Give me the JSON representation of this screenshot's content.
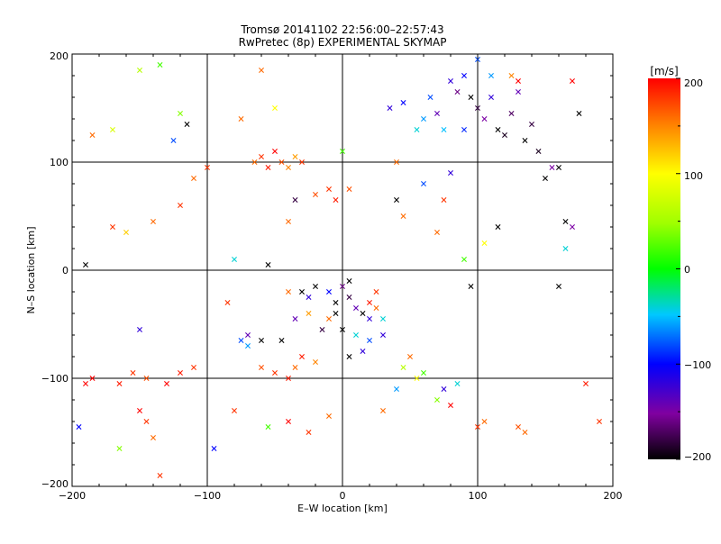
{
  "chart_data": {
    "type": "scatter",
    "title": "Tromsø 20141102 22:56:00–22:57:43",
    "subtitle": "RwPretec (8p) EXPERIMENTAL SKYMAP",
    "xlabel": "E–W location [km]",
    "ylabel": "N–S location [km]",
    "xlim": [
      -200,
      200
    ],
    "ylim": [
      -200,
      200
    ],
    "x_ticks": [
      "−200",
      "−100",
      "0",
      "100",
      "200"
    ],
    "y_ticks": [
      "−200",
      "−100",
      "0",
      "100",
      "200"
    ],
    "grid": true,
    "colorbar": {
      "label": "[m/s]",
      "range": [
        -200,
        200
      ],
      "ticks": [
        "200",
        "100",
        "0",
        "−100",
        "−200"
      ],
      "colormap": "rainbow (black→purple→blue→cyan→green→yellow→red)"
    },
    "marker_legend": {
      "dot": "small dot",
      "cross": "×"
    },
    "points": [
      [
        -120,
        145,
        40,
        "x"
      ],
      [
        -125,
        120,
        -80,
        "x"
      ],
      [
        -120,
        60,
        180,
        "x"
      ],
      [
        -115,
        135,
        -200,
        "x"
      ],
      [
        -135,
        190,
        20,
        "x"
      ],
      [
        -150,
        185,
        60,
        "x"
      ],
      [
        -170,
        130,
        80,
        "x"
      ],
      [
        -185,
        125,
        160,
        "x"
      ],
      [
        -190,
        5,
        -200,
        "x"
      ],
      [
        -170,
        40,
        180,
        "x"
      ],
      [
        -160,
        35,
        120,
        "x"
      ],
      [
        -140,
        45,
        160,
        "x"
      ],
      [
        -100,
        95,
        180,
        "x"
      ],
      [
        -110,
        85,
        160,
        "x"
      ],
      [
        -65,
        100,
        160,
        "x"
      ],
      [
        -60,
        105,
        180,
        "x"
      ],
      [
        -55,
        95,
        190,
        "x"
      ],
      [
        -50,
        110,
        200,
        "x"
      ],
      [
        -45,
        100,
        170,
        "x"
      ],
      [
        -40,
        95,
        150,
        "x"
      ],
      [
        -35,
        105,
        140,
        "x"
      ],
      [
        -30,
        100,
        180,
        "x"
      ],
      [
        -75,
        140,
        160,
        "x"
      ],
      [
        -60,
        185,
        160,
        "x"
      ],
      [
        -50,
        150,
        100,
        "x"
      ],
      [
        -40,
        45,
        160,
        "x"
      ],
      [
        -35,
        65,
        -180,
        "x"
      ],
      [
        -20,
        70,
        170,
        "x"
      ],
      [
        -10,
        75,
        180,
        "x"
      ],
      [
        -5,
        65,
        190,
        "x"
      ],
      [
        5,
        75,
        170,
        "x"
      ],
      [
        0,
        110,
        20,
        "x"
      ],
      [
        35,
        150,
        -120,
        "x"
      ],
      [
        45,
        155,
        -100,
        "x"
      ],
      [
        55,
        130,
        -40,
        "x"
      ],
      [
        60,
        140,
        -60,
        "x"
      ],
      [
        65,
        160,
        -80,
        "x"
      ],
      [
        70,
        145,
        -140,
        "x"
      ],
      [
        75,
        130,
        -50,
        "x"
      ],
      [
        80,
        175,
        -120,
        "x"
      ],
      [
        85,
        165,
        -160,
        "x"
      ],
      [
        90,
        180,
        -100,
        "x"
      ],
      [
        95,
        160,
        -200,
        "x"
      ],
      [
        100,
        150,
        -180,
        "x"
      ],
      [
        105,
        140,
        -150,
        "x"
      ],
      [
        110,
        160,
        -120,
        "x"
      ],
      [
        115,
        130,
        -200,
        "x"
      ],
      [
        120,
        125,
        -190,
        "x"
      ],
      [
        125,
        145,
        -170,
        "x"
      ],
      [
        130,
        165,
        -140,
        "x"
      ],
      [
        135,
        120,
        -200,
        "x"
      ],
      [
        140,
        135,
        -180,
        "x"
      ],
      [
        100,
        195,
        -80,
        "x"
      ],
      [
        110,
        180,
        -60,
        "x"
      ],
      [
        125,
        180,
        150,
        "x"
      ],
      [
        130,
        175,
        200,
        "x"
      ],
      [
        145,
        110,
        -190,
        "x"
      ],
      [
        150,
        85,
        -200,
        "x"
      ],
      [
        155,
        95,
        -150,
        "x"
      ],
      [
        170,
        175,
        200,
        "x"
      ],
      [
        175,
        145,
        -200,
        "x"
      ],
      [
        160,
        95,
        -200,
        "x"
      ],
      [
        115,
        40,
        -200,
        "x"
      ],
      [
        105,
        25,
        100,
        "x"
      ],
      [
        80,
        90,
        -120,
        "x"
      ],
      [
        75,
        65,
        180,
        "x"
      ],
      [
        70,
        35,
        160,
        "x"
      ],
      [
        40,
        100,
        160,
        "x"
      ],
      [
        40,
        65,
        -200,
        "x"
      ],
      [
        45,
        50,
        160,
        "x"
      ],
      [
        60,
        80,
        -80,
        "x"
      ],
      [
        90,
        130,
        -90,
        "x"
      ],
      [
        165,
        45,
        -200,
        "x"
      ],
      [
        170,
        40,
        -150,
        "x"
      ],
      [
        165,
        20,
        -40,
        "x"
      ],
      [
        160,
        -15,
        -200,
        "x"
      ],
      [
        95,
        -15,
        -200,
        "x"
      ],
      [
        90,
        10,
        20,
        "x"
      ],
      [
        -55,
        5,
        -200,
        "x"
      ],
      [
        -80,
        10,
        -40,
        "x"
      ],
      [
        -30,
        -20,
        -200,
        "x"
      ],
      [
        -25,
        -25,
        -120,
        "x"
      ],
      [
        -20,
        -15,
        -200,
        "x"
      ],
      [
        -10,
        -20,
        -100,
        "x"
      ],
      [
        -5,
        -30,
        -200,
        "x"
      ],
      [
        5,
        -25,
        -180,
        "x"
      ],
      [
        10,
        -35,
        -140,
        "x"
      ],
      [
        15,
        -40,
        -200,
        "x"
      ],
      [
        20,
        -45,
        -120,
        "x"
      ],
      [
        25,
        -35,
        160,
        "x"
      ],
      [
        30,
        -45,
        -40,
        "x"
      ],
      [
        15,
        -75,
        -120,
        "x"
      ],
      [
        5,
        -80,
        -200,
        "x"
      ],
      [
        -35,
        -45,
        -140,
        "x"
      ],
      [
        -45,
        -65,
        -200,
        "x"
      ],
      [
        -60,
        -65,
        -200,
        "x"
      ],
      [
        -70,
        -70,
        -60,
        "x"
      ],
      [
        -75,
        -65,
        -80,
        "x"
      ],
      [
        -110,
        -90,
        180,
        "x"
      ],
      [
        -120,
        -95,
        190,
        "x"
      ],
      [
        -130,
        -105,
        200,
        "x"
      ],
      [
        -145,
        -100,
        170,
        "x"
      ],
      [
        -155,
        -95,
        180,
        "x"
      ],
      [
        -165,
        -105,
        190,
        "x"
      ],
      [
        -185,
        -100,
        200,
        "x"
      ],
      [
        -190,
        -105,
        200,
        "x"
      ],
      [
        -150,
        -55,
        -120,
        "x"
      ],
      [
        -150,
        -130,
        200,
        "x"
      ],
      [
        -145,
        -140,
        180,
        "x"
      ],
      [
        -140,
        -155,
        160,
        "x"
      ],
      [
        -135,
        -190,
        180,
        "x"
      ],
      [
        -165,
        -165,
        40,
        "x"
      ],
      [
        -195,
        -145,
        -100,
        "x"
      ],
      [
        -95,
        -165,
        -100,
        "x"
      ],
      [
        -80,
        -130,
        180,
        "x"
      ],
      [
        -55,
        -145,
        20,
        "x"
      ],
      [
        -40,
        -140,
        200,
        "x"
      ],
      [
        -25,
        -150,
        180,
        "x"
      ],
      [
        -10,
        -135,
        160,
        "x"
      ],
      [
        -60,
        -90,
        170,
        "x"
      ],
      [
        -50,
        -95,
        180,
        "x"
      ],
      [
        -30,
        -80,
        190,
        "x"
      ],
      [
        -35,
        -90,
        160,
        "x"
      ],
      [
        -20,
        -85,
        150,
        "x"
      ],
      [
        -40,
        -100,
        190,
        "x"
      ],
      [
        60,
        -95,
        20,
        "x"
      ],
      [
        70,
        -120,
        40,
        "x"
      ],
      [
        80,
        -125,
        200,
        "x"
      ],
      [
        75,
        -110,
        -120,
        "x"
      ],
      [
        85,
        -105,
        -40,
        "x"
      ],
      [
        100,
        -145,
        180,
        "x"
      ],
      [
        105,
        -140,
        160,
        "x"
      ],
      [
        130,
        -145,
        170,
        "x"
      ],
      [
        135,
        -150,
        160,
        "x"
      ],
      [
        180,
        -105,
        190,
        "x"
      ],
      [
        190,
        -140,
        180,
        "x"
      ],
      [
        45,
        -90,
        60,
        "x"
      ],
      [
        55,
        -100,
        100,
        "x"
      ],
      [
        40,
        -110,
        -60,
        "x"
      ],
      [
        30,
        -130,
        160,
        "x"
      ],
      [
        25,
        -20,
        180,
        "x"
      ],
      [
        20,
        -30,
        190,
        "x"
      ],
      [
        -15,
        -55,
        -180,
        "x"
      ],
      [
        0,
        -55,
        -200,
        "x"
      ],
      [
        10,
        -60,
        -40,
        "x"
      ],
      [
        20,
        -65,
        -80,
        "x"
      ],
      [
        30,
        -60,
        -120,
        "x"
      ],
      [
        -5,
        -40,
        -200,
        "x"
      ],
      [
        0,
        -15,
        -160,
        "x"
      ],
      [
        5,
        -10,
        -200,
        "x"
      ],
      [
        -25,
        -40,
        140,
        "x"
      ],
      [
        -10,
        -45,
        160,
        "x"
      ],
      [
        -40,
        -20,
        160,
        "x"
      ],
      [
        50,
        -80,
        160,
        "x"
      ],
      [
        -70,
        -60,
        -140,
        "x"
      ],
      [
        -85,
        -30,
        180,
        "x"
      ]
    ]
  }
}
